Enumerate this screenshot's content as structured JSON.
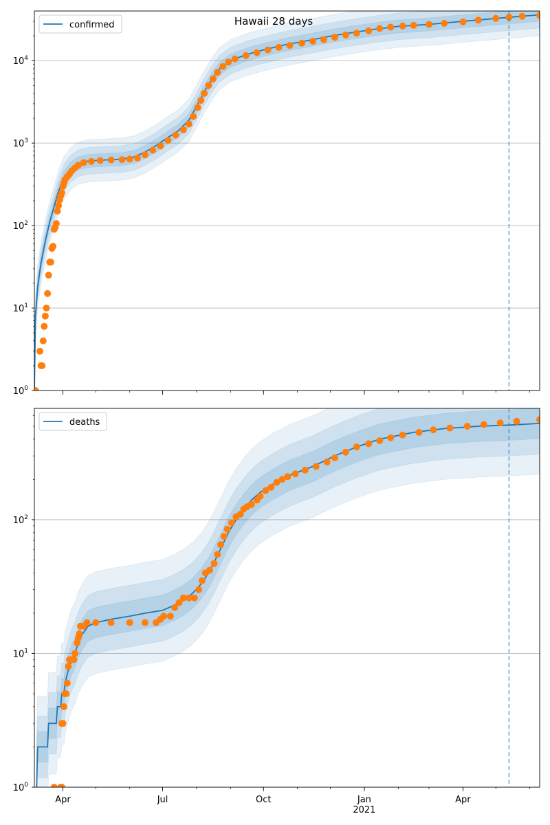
{
  "title": "Hawaii 28 days",
  "x_ticks": [
    {
      "date": "2020-04-01",
      "label": "Apr",
      "sublabel": ""
    },
    {
      "date": "2020-07-01",
      "label": "Jul",
      "sublabel": ""
    },
    {
      "date": "2020-10-01",
      "label": "Oct",
      "sublabel": ""
    },
    {
      "date": "2021-01-01",
      "label": "Jan",
      "sublabel": "2021"
    },
    {
      "date": "2021-04-01",
      "label": "Apr",
      "sublabel": ""
    }
  ],
  "colors": {
    "model": "#1f77b4",
    "observed": "#ff7f0e",
    "band": "#1f77b4",
    "grid": "#b0b0b0",
    "marker": "#1f77b4"
  },
  "chart_data": [
    {
      "type": "line",
      "legend": "confirmed",
      "legend_position": "top-left",
      "y_scale": "log",
      "ylim": [
        1,
        40000
      ],
      "xlim": [
        "2020-03-06",
        "2021-06-10"
      ],
      "grid": "y-major",
      "y_ticks": [
        {
          "value": 1,
          "base": "10",
          "exp": "0"
        },
        {
          "value": 10,
          "base": "10",
          "exp": "1"
        },
        {
          "value": 100,
          "base": "10",
          "exp": "2"
        },
        {
          "value": 1000,
          "base": "10",
          "exp": "3"
        },
        {
          "value": 10000,
          "base": "10",
          "exp": "4"
        }
      ],
      "forecast_start": "2021-05-13",
      "model": [
        [
          "2020-03-06",
          1
        ],
        [
          "2020-03-07",
          8
        ],
        [
          "2020-03-09",
          18
        ],
        [
          "2020-03-12",
          35
        ],
        [
          "2020-03-16",
          65
        ],
        [
          "2020-03-20",
          110
        ],
        [
          "2020-03-24",
          170
        ],
        [
          "2020-03-28",
          260
        ],
        [
          "2020-04-02",
          380
        ],
        [
          "2020-04-08",
          490
        ],
        [
          "2020-04-15",
          570
        ],
        [
          "2020-04-25",
          610
        ],
        [
          "2020-05-10",
          625
        ],
        [
          "2020-05-25",
          640
        ],
        [
          "2020-06-05",
          680
        ],
        [
          "2020-06-15",
          780
        ],
        [
          "2020-06-25",
          930
        ],
        [
          "2020-07-05",
          1150
        ],
        [
          "2020-07-15",
          1400
        ],
        [
          "2020-07-25",
          1900
        ],
        [
          "2020-08-01",
          2800
        ],
        [
          "2020-08-08",
          4200
        ],
        [
          "2020-08-15",
          6000
        ],
        [
          "2020-08-22",
          8000
        ],
        [
          "2020-09-01",
          10000
        ],
        [
          "2020-09-15",
          11800
        ],
        [
          "2020-10-01",
          13500
        ],
        [
          "2020-10-20",
          15500
        ],
        [
          "2020-11-10",
          17500
        ],
        [
          "2020-12-01",
          19800
        ],
        [
          "2020-12-20",
          21800
        ],
        [
          "2021-01-10",
          24000
        ],
        [
          "2021-02-01",
          26000
        ],
        [
          "2021-03-01",
          27500
        ],
        [
          "2021-04-01",
          30000
        ],
        [
          "2021-05-01",
          32500
        ],
        [
          "2021-05-13",
          33500
        ],
        [
          "2021-06-10",
          36000
        ]
      ],
      "observed": [
        [
          "2020-03-06",
          1
        ],
        [
          "2020-03-07",
          1
        ],
        [
          "2020-03-11",
          3
        ],
        [
          "2020-03-12",
          2
        ],
        [
          "2020-03-13",
          2
        ],
        [
          "2020-03-14",
          4
        ],
        [
          "2020-03-15",
          6
        ],
        [
          "2020-03-16",
          8
        ],
        [
          "2020-03-17",
          10
        ],
        [
          "2020-03-18",
          15
        ],
        [
          "2020-03-19",
          25
        ],
        [
          "2020-03-20",
          36
        ],
        [
          "2020-03-21",
          36
        ],
        [
          "2020-03-22",
          53
        ],
        [
          "2020-03-23",
          56
        ],
        [
          "2020-03-24",
          90
        ],
        [
          "2020-03-25",
          95
        ],
        [
          "2020-03-26",
          106
        ],
        [
          "2020-03-27",
          150
        ],
        [
          "2020-03-28",
          175
        ],
        [
          "2020-03-29",
          205
        ],
        [
          "2020-03-30",
          230
        ],
        [
          "2020-03-31",
          250
        ],
        [
          "2020-04-01",
          300
        ],
        [
          "2020-04-02",
          330
        ],
        [
          "2020-04-03",
          360
        ],
        [
          "2020-04-05",
          390
        ],
        [
          "2020-04-07",
          420
        ],
        [
          "2020-04-09",
          460
        ],
        [
          "2020-04-12",
          500
        ],
        [
          "2020-04-15",
          540
        ],
        [
          "2020-04-20",
          580
        ],
        [
          "2020-04-27",
          600
        ],
        [
          "2020-05-05",
          615
        ],
        [
          "2020-05-15",
          625
        ],
        [
          "2020-05-25",
          630
        ],
        [
          "2020-06-01",
          640
        ],
        [
          "2020-06-08",
          660
        ],
        [
          "2020-06-15",
          720
        ],
        [
          "2020-06-22",
          820
        ],
        [
          "2020-06-29",
          920
        ],
        [
          "2020-07-06",
          1080
        ],
        [
          "2020-07-13",
          1250
        ],
        [
          "2020-07-20",
          1450
        ],
        [
          "2020-07-25",
          1700
        ],
        [
          "2020-07-29",
          2100
        ],
        [
          "2020-08-02",
          2700
        ],
        [
          "2020-08-05",
          3300
        ],
        [
          "2020-08-08",
          4000
        ],
        [
          "2020-08-12",
          5000
        ],
        [
          "2020-08-16",
          6000
        ],
        [
          "2020-08-20",
          7200
        ],
        [
          "2020-08-25",
          8500
        ],
        [
          "2020-08-30",
          9600
        ],
        [
          "2020-09-05",
          10500
        ],
        [
          "2020-09-15",
          11500
        ],
        [
          "2020-09-25",
          12500
        ],
        [
          "2020-10-05",
          13500
        ],
        [
          "2020-10-15",
          14500
        ],
        [
          "2020-10-25",
          15300
        ],
        [
          "2020-11-05",
          16300
        ],
        [
          "2020-11-15",
          17200
        ],
        [
          "2020-11-25",
          18000
        ],
        [
          "2020-12-05",
          19200
        ],
        [
          "2020-12-15",
          20500
        ],
        [
          "2020-12-25",
          21500
        ],
        [
          "2021-01-05",
          23000
        ],
        [
          "2021-01-15",
          24500
        ],
        [
          "2021-01-25",
          25500
        ],
        [
          "2021-02-05",
          26300
        ],
        [
          "2021-02-15",
          26800
        ],
        [
          "2021-03-01",
          27500
        ],
        [
          "2021-03-15",
          28300
        ],
        [
          "2021-04-01",
          29500
        ],
        [
          "2021-04-15",
          31000
        ],
        [
          "2021-05-01",
          32500
        ],
        [
          "2021-05-13",
          33500
        ],
        [
          "2021-05-25",
          34500
        ],
        [
          "2021-06-10",
          35500
        ]
      ]
    },
    {
      "type": "line",
      "legend": "deaths",
      "legend_position": "top-left",
      "y_scale": "log",
      "ylim": [
        1,
        680
      ],
      "xlim": [
        "2020-03-06",
        "2021-06-10"
      ],
      "grid": "y-major",
      "y_ticks": [
        {
          "value": 1,
          "base": "10",
          "exp": "0"
        },
        {
          "value": 10,
          "base": "10",
          "exp": "1"
        },
        {
          "value": 100,
          "base": "10",
          "exp": "2"
        }
      ],
      "forecast_start": "2021-05-13",
      "model": [
        [
          "2020-03-08",
          1
        ],
        [
          "2020-03-09",
          2
        ],
        [
          "2020-03-18",
          2
        ],
        [
          "2020-03-19",
          3
        ],
        [
          "2020-03-26",
          3
        ],
        [
          "2020-03-27",
          4
        ],
        [
          "2020-03-30",
          4
        ],
        [
          "2020-03-31",
          5
        ],
        [
          "2020-04-02",
          5
        ],
        [
          "2020-04-03",
          6
        ],
        [
          "2020-04-05",
          7
        ],
        [
          "2020-04-07",
          8
        ],
        [
          "2020-04-09",
          9
        ],
        [
          "2020-04-12",
          10
        ],
        [
          "2020-04-15",
          12
        ],
        [
          "2020-04-19",
          14
        ],
        [
          "2020-04-24",
          16
        ],
        [
          "2020-05-01",
          17
        ],
        [
          "2020-05-15",
          18
        ],
        [
          "2020-06-01",
          19
        ],
        [
          "2020-06-15",
          20
        ],
        [
          "2020-07-01",
          21
        ],
        [
          "2020-07-12",
          23
        ],
        [
          "2020-07-20",
          25
        ],
        [
          "2020-07-28",
          28
        ],
        [
          "2020-08-05",
          33
        ],
        [
          "2020-08-12",
          40
        ],
        [
          "2020-08-18",
          50
        ],
        [
          "2020-08-24",
          63
        ],
        [
          "2020-08-30",
          80
        ],
        [
          "2020-09-06",
          100
        ],
        [
          "2020-09-13",
          120
        ],
        [
          "2020-09-20",
          140
        ],
        [
          "2020-09-28",
          160
        ],
        [
          "2020-10-10",
          185
        ],
        [
          "2020-10-25",
          215
        ],
        [
          "2020-11-15",
          250
        ],
        [
          "2020-12-05",
          300
        ],
        [
          "2020-12-25",
          350
        ],
        [
          "2021-01-15",
          400
        ],
        [
          "2021-02-15",
          450
        ],
        [
          "2021-03-15",
          480
        ],
        [
          "2021-04-15",
          500
        ],
        [
          "2021-05-13",
          510
        ],
        [
          "2021-06-10",
          525
        ]
      ],
      "observed": [
        [
          "2020-03-24",
          1
        ],
        [
          "2020-03-30",
          1
        ],
        [
          "2020-03-31",
          1
        ],
        [
          "2020-03-31",
          3
        ],
        [
          "2020-04-01",
          3
        ],
        [
          "2020-04-02",
          4
        ],
        [
          "2020-04-03",
          5
        ],
        [
          "2020-04-04",
          5
        ],
        [
          "2020-04-05",
          6
        ],
        [
          "2020-04-06",
          8
        ],
        [
          "2020-04-07",
          9
        ],
        [
          "2020-04-09",
          9
        ],
        [
          "2020-04-11",
          9
        ],
        [
          "2020-04-12",
          10
        ],
        [
          "2020-04-14",
          12
        ],
        [
          "2020-04-15",
          13
        ],
        [
          "2020-04-16",
          14
        ],
        [
          "2020-04-17",
          16
        ],
        [
          "2020-04-20",
          16
        ],
        [
          "2020-04-23",
          17
        ],
        [
          "2020-05-01",
          17
        ],
        [
          "2020-05-15",
          17
        ],
        [
          "2020-06-01",
          17
        ],
        [
          "2020-06-15",
          17
        ],
        [
          "2020-06-25",
          17
        ],
        [
          "2020-06-29",
          18
        ],
        [
          "2020-07-02",
          19
        ],
        [
          "2020-07-08",
          19
        ],
        [
          "2020-07-12",
          22
        ],
        [
          "2020-07-16",
          24
        ],
        [
          "2020-07-20",
          26
        ],
        [
          "2020-07-25",
          26
        ],
        [
          "2020-07-30",
          26
        ],
        [
          "2020-08-03",
          30
        ],
        [
          "2020-08-06",
          35
        ],
        [
          "2020-08-09",
          40
        ],
        [
          "2020-08-13",
          42
        ],
        [
          "2020-08-17",
          47
        ],
        [
          "2020-08-20",
          55
        ],
        [
          "2020-08-23",
          65
        ],
        [
          "2020-08-26",
          75
        ],
        [
          "2020-08-29",
          85
        ],
        [
          "2020-09-02",
          95
        ],
        [
          "2020-09-06",
          105
        ],
        [
          "2020-09-10",
          110
        ],
        [
          "2020-09-13",
          120
        ],
        [
          "2020-09-16",
          125
        ],
        [
          "2020-09-20",
          130
        ],
        [
          "2020-09-25",
          140
        ],
        [
          "2020-09-28",
          150
        ],
        [
          "2020-10-03",
          165
        ],
        [
          "2020-10-08",
          175
        ],
        [
          "2020-10-13",
          190
        ],
        [
          "2020-10-18",
          200
        ],
        [
          "2020-10-23",
          210
        ],
        [
          "2020-10-30",
          220
        ],
        [
          "2020-11-08",
          235
        ],
        [
          "2020-11-18",
          250
        ],
        [
          "2020-11-28",
          270
        ],
        [
          "2020-12-05",
          290
        ],
        [
          "2020-12-15",
          320
        ],
        [
          "2020-12-25",
          350
        ],
        [
          "2021-01-05",
          370
        ],
        [
          "2021-01-15",
          390
        ],
        [
          "2021-01-25",
          410
        ],
        [
          "2021-02-05",
          430
        ],
        [
          "2021-02-20",
          450
        ],
        [
          "2021-03-05",
          470
        ],
        [
          "2021-03-20",
          485
        ],
        [
          "2021-04-05",
          500
        ],
        [
          "2021-04-20",
          515
        ],
        [
          "2021-05-05",
          530
        ],
        [
          "2021-05-20",
          545
        ],
        [
          "2021-06-10",
          560
        ]
      ]
    }
  ]
}
